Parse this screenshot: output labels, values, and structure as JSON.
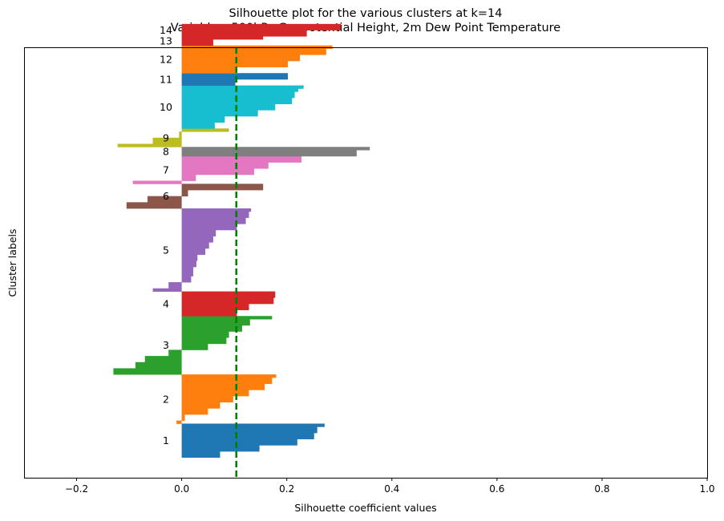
{
  "chart_data": {
    "type": "bar",
    "orientation": "horizontal",
    "title": "Silhouette plot for the various clusters at k=14",
    "subtitle": "Variables: 500hPa Geopotential Height, 2m Dew Point Temperature",
    "xlabel": "Silhouette coefficient values",
    "ylabel": "Cluster labels",
    "xlim": [
      -0.3,
      1.0
    ],
    "ylim": [
      0,
      140
    ],
    "xticks": [
      -0.2,
      0.0,
      0.2,
      0.4,
      0.6,
      0.8,
      1.0
    ],
    "xtick_labels": [
      "−0.2",
      "0.0",
      "0.2",
      "0.4",
      "0.6",
      "0.8",
      "1.0"
    ],
    "grid": false,
    "legend": "none",
    "reference_line": {
      "value": 0.104,
      "color": "#008000",
      "style": "dashed"
    },
    "clusters": [
      {
        "label": "1",
        "color": "#1f77b4",
        "start": 6.6,
        "values": [
          0.073,
          0.073,
          0.148,
          0.148,
          0.22,
          0.22,
          0.252,
          0.252,
          0.258,
          0.258,
          0.272
        ]
      },
      {
        "label": "2",
        "color": "#ff7f0e",
        "start": 17.6,
        "values": [
          -0.01,
          0.006,
          0.006,
          0.05,
          0.05,
          0.073,
          0.073,
          0.098,
          0.098,
          0.128,
          0.128,
          0.158,
          0.158,
          0.172,
          0.172,
          0.18
        ]
      },
      {
        "label": "3",
        "color": "#2ca02c",
        "start": 33.6,
        "values": [
          -0.13,
          -0.13,
          -0.088,
          -0.088,
          -0.07,
          -0.07,
          -0.025,
          -0.025,
          0.05,
          0.05,
          0.085,
          0.085,
          0.09,
          0.09,
          0.115,
          0.115,
          0.13,
          0.13,
          0.172
        ]
      },
      {
        "label": "4",
        "color": "#d62728",
        "start": 52.6,
        "values": [
          0.105,
          0.105,
          0.128,
          0.128,
          0.175,
          0.175,
          0.178,
          0.178
        ]
      },
      {
        "label": "5",
        "color": "#9467bd",
        "start": 60.6,
        "values": [
          -0.055,
          -0.025,
          -0.025,
          0.018,
          0.018,
          0.022,
          0.022,
          0.022,
          0.028,
          0.028,
          0.03,
          0.03,
          0.045,
          0.045,
          0.052,
          0.052,
          0.06,
          0.06,
          0.065,
          0.065,
          0.105,
          0.105,
          0.122,
          0.122,
          0.128,
          0.128,
          0.132
        ]
      },
      {
        "label": "6",
        "color": "#8c564b",
        "start": 87.6,
        "values": [
          -0.105,
          -0.105,
          -0.065,
          -0.065,
          0.012,
          0.012,
          0.155,
          0.155
        ]
      },
      {
        "label": "7",
        "color": "#e377c2",
        "start": 95.6,
        "values": [
          -0.093,
          0.027,
          0.027,
          0.138,
          0.138,
          0.165,
          0.165,
          0.228,
          0.228
        ]
      },
      {
        "label": "8",
        "color": "#7f7f7f",
        "start": 104.6,
        "values": [
          0.333,
          0.333,
          0.358
        ]
      },
      {
        "label": "9",
        "color": "#bcbd22",
        "start": 107.6,
        "values": [
          -0.122,
          -0.055,
          -0.055,
          -0.005,
          -0.005,
          0.09
        ]
      },
      {
        "label": "10",
        "color": "#17becf",
        "start": 113.6,
        "values": [
          0.063,
          0.063,
          0.082,
          0.082,
          0.145,
          0.145,
          0.178,
          0.178,
          0.21,
          0.21,
          0.215,
          0.215,
          0.222,
          0.232
        ]
      },
      {
        "label": "11",
        "color": "#1f77b4",
        "start": 127.6,
        "values": [
          0.102,
          0.102,
          0.202,
          0.202
        ]
      },
      {
        "label": "12",
        "color": "#ff7f0e",
        "start": 131.6,
        "values": [
          0.105,
          0.105,
          0.202,
          0.202,
          0.225,
          0.225,
          0.275,
          0.275,
          0.287
        ]
      },
      {
        "label": "13",
        "color": "#d62728",
        "start": 140.6,
        "values": [
          0.06,
          0.06,
          0.155
        ]
      },
      {
        "label": "14",
        "color": "#d62728",
        "start": 143.6,
        "values": [
          0.238,
          0.238,
          0.303,
          0.303
        ]
      }
    ]
  }
}
